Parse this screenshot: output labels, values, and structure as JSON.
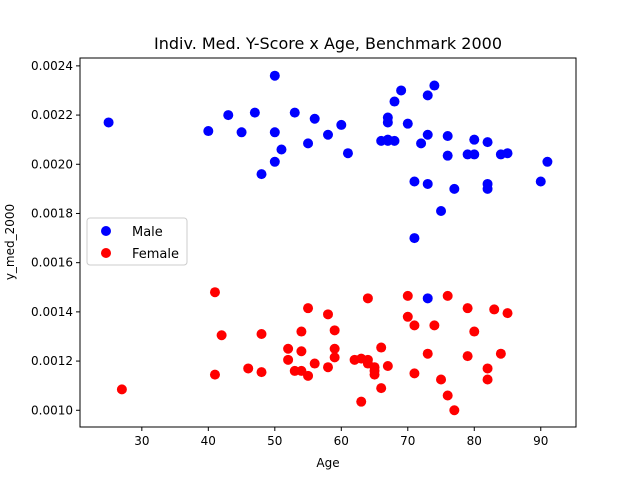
{
  "chart_data": {
    "type": "scatter",
    "title": "Indiv. Med. Y-Score x Age, Benchmark 2000",
    "xlabel": "Age",
    "ylabel": "y_med_2000",
    "xlim": [
      20.7,
      95.3
    ],
    "ylim": [
      0.000932,
      0.002432
    ],
    "xticks": [
      30,
      40,
      50,
      60,
      70,
      80,
      90
    ],
    "xtick_labels": [
      "30",
      "40",
      "50",
      "60",
      "70",
      "80",
      "90"
    ],
    "yticks": [
      0.001,
      0.0012,
      0.0014,
      0.0016,
      0.0018,
      0.002,
      0.0022,
      0.0024
    ],
    "ytick_labels": [
      "0.0010",
      "0.0012",
      "0.0014",
      "0.0016",
      "0.0018",
      "0.0020",
      "0.0022",
      "0.0024"
    ],
    "grid": false,
    "legend_position": "center-left",
    "series": [
      {
        "name": "Male",
        "color": "#0000ff",
        "points": [
          [
            25,
            0.00217
          ],
          [
            40,
            0.002135
          ],
          [
            43,
            0.0022
          ],
          [
            45,
            0.00213
          ],
          [
            47,
            0.00221
          ],
          [
            48,
            0.00196
          ],
          [
            50,
            0.00236
          ],
          [
            50,
            0.00213
          ],
          [
            50,
            0.00201
          ],
          [
            51,
            0.00206
          ],
          [
            53,
            0.00221
          ],
          [
            55,
            0.002085
          ],
          [
            56,
            0.002185
          ],
          [
            58,
            0.00212
          ],
          [
            60,
            0.00216
          ],
          [
            61,
            0.002045
          ],
          [
            66,
            0.002095
          ],
          [
            67,
            0.00219
          ],
          [
            67,
            0.00217
          ],
          [
            67,
            0.0021
          ],
          [
            67,
            0.002095
          ],
          [
            68,
            0.002255
          ],
          [
            68,
            0.002095
          ],
          [
            69,
            0.0023
          ],
          [
            70,
            0.002165
          ],
          [
            71,
            0.00193
          ],
          [
            71,
            0.0017
          ],
          [
            72,
            0.002085
          ],
          [
            73,
            0.00228
          ],
          [
            73,
            0.00212
          ],
          [
            73,
            0.00192
          ],
          [
            73,
            0.001455
          ],
          [
            74,
            0.00232
          ],
          [
            75,
            0.00181
          ],
          [
            76,
            0.002115
          ],
          [
            76,
            0.002035
          ],
          [
            77,
            0.0019
          ],
          [
            79,
            0.00204
          ],
          [
            80,
            0.0021
          ],
          [
            80,
            0.00204
          ],
          [
            82,
            0.00209
          ],
          [
            82,
            0.00192
          ],
          [
            82,
            0.0019
          ],
          [
            84,
            0.00204
          ],
          [
            85,
            0.002045
          ],
          [
            90,
            0.00193
          ],
          [
            91,
            0.00201
          ]
        ]
      },
      {
        "name": "Female",
        "color": "#ff0000",
        "points": [
          [
            27,
            0.001085
          ],
          [
            41,
            0.00148
          ],
          [
            41,
            0.001145
          ],
          [
            42,
            0.001305
          ],
          [
            46,
            0.00117
          ],
          [
            48,
            0.00131
          ],
          [
            48,
            0.001155
          ],
          [
            52,
            0.00125
          ],
          [
            52,
            0.001205
          ],
          [
            53,
            0.00116
          ],
          [
            54,
            0.00132
          ],
          [
            54,
            0.00124
          ],
          [
            54,
            0.00116
          ],
          [
            55,
            0.001415
          ],
          [
            55,
            0.00114
          ],
          [
            56,
            0.00119
          ],
          [
            58,
            0.00139
          ],
          [
            58,
            0.001175
          ],
          [
            59,
            0.001325
          ],
          [
            59,
            0.00125
          ],
          [
            59,
            0.001215
          ],
          [
            62,
            0.001205
          ],
          [
            63,
            0.00121
          ],
          [
            63,
            0.001035
          ],
          [
            64,
            0.001455
          ],
          [
            64,
            0.001205
          ],
          [
            64,
            0.00119
          ],
          [
            65,
            0.001175
          ],
          [
            65,
            0.00116
          ],
          [
            65,
            0.001145
          ],
          [
            66,
            0.001255
          ],
          [
            66,
            0.00109
          ],
          [
            67,
            0.00118
          ],
          [
            70,
            0.001465
          ],
          [
            70,
            0.00138
          ],
          [
            71,
            0.001345
          ],
          [
            71,
            0.00115
          ],
          [
            73,
            0.00123
          ],
          [
            74,
            0.001345
          ],
          [
            75,
            0.001125
          ],
          [
            76,
            0.001465
          ],
          [
            76,
            0.00106
          ],
          [
            77,
            0.001
          ],
          [
            79,
            0.001415
          ],
          [
            79,
            0.00122
          ],
          [
            80,
            0.00132
          ],
          [
            82,
            0.00117
          ],
          [
            82,
            0.001125
          ],
          [
            83,
            0.00141
          ],
          [
            84,
            0.00123
          ],
          [
            85,
            0.001395
          ]
        ]
      }
    ]
  }
}
